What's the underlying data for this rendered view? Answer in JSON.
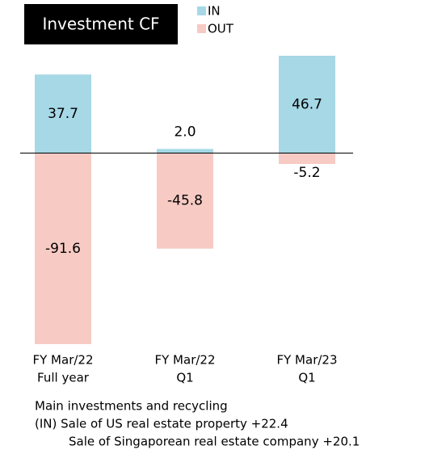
{
  "chart_data": {
    "type": "bar",
    "title": "Investment CF",
    "categories": [
      [
        "FY Mar/22",
        "Full year"
      ],
      [
        "FY Mar/22",
        "Q1"
      ],
      [
        "FY Mar/23",
        "Q1"
      ]
    ],
    "series": [
      {
        "name": "IN",
        "color": "#a6d8e6",
        "values": [
          37.7,
          2.0,
          46.7
        ],
        "value_labels": [
          "37.7",
          "2.0",
          "46.7"
        ]
      },
      {
        "name": "OUT",
        "color": "#f7cac4",
        "values": [
          -91.6,
          -45.8,
          -5.2
        ]
      }
    ],
    "notes": [
      "Main investments and recycling",
      "(IN) Sale of US real estate property +22.4",
      "Sale of Singaporean real estate company  +20.1"
    ]
  }
}
